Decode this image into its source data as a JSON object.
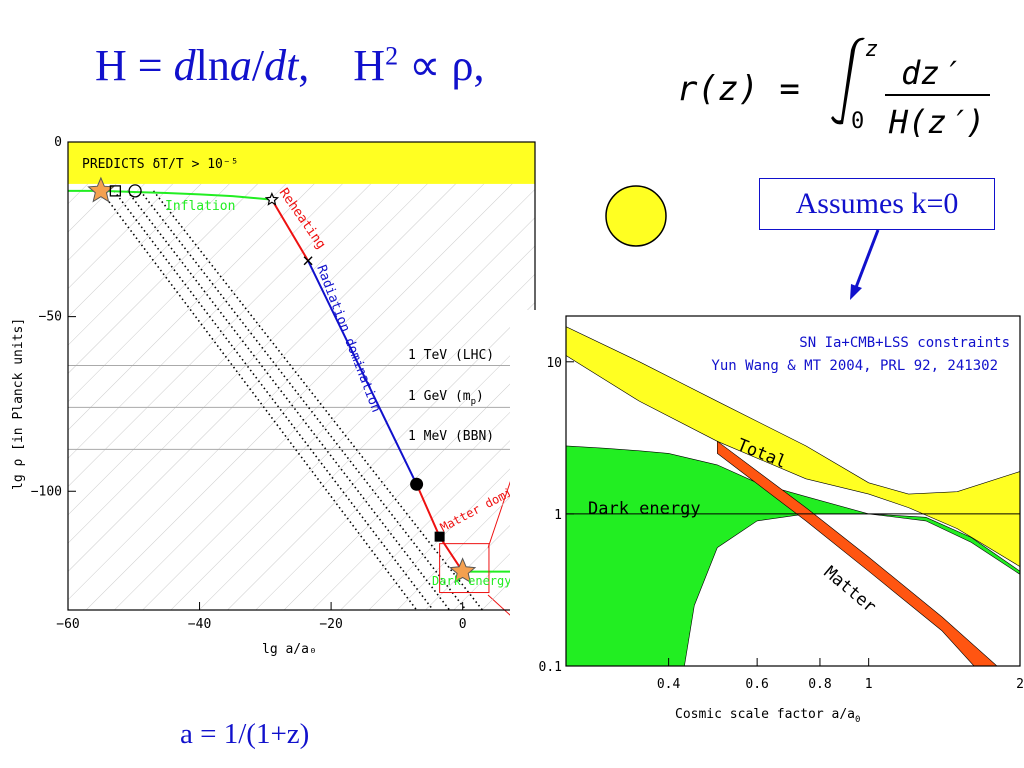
{
  "header": {
    "hubble_lhs": "H = ",
    "hubble_d": "d",
    "hubble_ln": "ln",
    "hubble_a": "a",
    "hubble_slash": "/",
    "hubble_dt": "dt",
    "hubble_comma": ",",
    "friedmann_H": "H",
    "friedmann_sup": "2",
    "friedmann_rest": " ∝ ρ,",
    "distance_lhs": "r(z) = ",
    "distance_int_upper": "z",
    "distance_int_lower": "0",
    "distance_num": "dz′",
    "distance_den": "H(z′)"
  },
  "assumption_box": "Assumes k=0",
  "footer_formula": "a = 1/(1+z)",
  "colors": {
    "blue": "#1111cc",
    "yellow": "#ffff22",
    "green": "#22ee22",
    "red": "#ee1111",
    "matter": "#ff5511",
    "hatch": "#cccccc"
  },
  "chart_data": [
    {
      "type": "line",
      "xlabel": "lg a/a₀",
      "ylabel": "lg ρ [in Planck units]",
      "xlim": [
        -60,
        11
      ],
      "ylim": [
        -134,
        0
      ],
      "xticks": [
        -60,
        -40,
        -20,
        0
      ],
      "yticks": [
        0,
        -50,
        -100
      ],
      "grid": false,
      "excluded_band": {
        "label": "PREDICTS δT/T > 10⁻⁵",
        "y": [
          -12,
          0
        ]
      },
      "energy_scales": [
        {
          "label": "1 TeV (LHC)",
          "y": -64
        },
        {
          "label": "1 GeV (m",
          "subscript": "p",
          "close": ")",
          "y": -76
        },
        {
          "label": "1 MeV (BBN)",
          "y": -88
        }
      ],
      "series": [
        {
          "name": "Inflation",
          "color": "#22ee22",
          "x": [
            -60,
            -55,
            -50,
            -45,
            -40,
            -35,
            -32,
            -29
          ],
          "y": [
            -14,
            -14,
            -14.3,
            -14.6,
            -15,
            -15.5,
            -16,
            -16.5
          ]
        },
        {
          "name": "Reheating",
          "color": "#ee1111",
          "x": [
            -29,
            -23.5
          ],
          "y": [
            -16.5,
            -34
          ]
        },
        {
          "name": "Radiation domination",
          "color": "#1111cc",
          "x": [
            -23.5,
            -7
          ],
          "y": [
            -34,
            -98
          ]
        },
        {
          "name": "Matter domination",
          "color": "#ee1111",
          "x": [
            -7,
            -3.5,
            0
          ],
          "y": [
            -98,
            -113,
            -123
          ]
        },
        {
          "name": "Dark energy domination",
          "color": "#22ee22",
          "x": [
            0,
            11
          ],
          "y": [
            -123,
            -123
          ]
        }
      ],
      "markers": [
        {
          "shape": "star-filled",
          "x": -55,
          "y": -14
        },
        {
          "shape": "square-open",
          "x": -52.8,
          "y": -14
        },
        {
          "shape": "circle-open",
          "x": -49.8,
          "y": -14
        },
        {
          "shape": "star-open",
          "x": -29,
          "y": -16.5
        },
        {
          "shape": "cross",
          "x": -23.5,
          "y": -34
        },
        {
          "shape": "circle-filled",
          "x": -7,
          "y": -98
        },
        {
          "shape": "square-filled",
          "x": -3.5,
          "y": -113
        },
        {
          "shape": "star-filled",
          "x": 0,
          "y": -123
        }
      ],
      "tracks": [
        {
          "from": [
            -55,
            -14
          ],
          "to": [
            -7,
            -134
          ]
        },
        {
          "from": [
            -53,
            -14
          ],
          "to": [
            -4.5,
            -134
          ]
        },
        {
          "from": [
            -51,
            -14
          ],
          "to": [
            -2,
            -134
          ]
        },
        {
          "from": [
            -49,
            -14
          ],
          "to": [
            0.5,
            -134
          ]
        },
        {
          "from": [
            -47,
            -14
          ],
          "to": [
            3,
            -134
          ]
        }
      ]
    },
    {
      "type": "area",
      "xscale": "log",
      "yscale": "log",
      "xlabel": "Cosmic scale factor a/a",
      "xlabel_sub": "0",
      "xlim": [
        0.25,
        2
      ],
      "ylim": [
        0.1,
        20
      ],
      "xticks": [
        0.4,
        0.6,
        0.8,
        1,
        2
      ],
      "yticks": [
        0.1,
        1,
        10
      ],
      "annotations": [
        "SN Ia+CMB+LSS constraints",
        "Yun Wang & MT 2004, PRL 92, 241302"
      ],
      "series": [
        {
          "name": "Total",
          "color": "#ffff22",
          "upper_x": [
            0.25,
            0.35,
            0.5,
            0.75,
            1.0,
            1.2,
            1.5,
            2.0
          ],
          "upper_y": [
            17,
            10,
            5.5,
            2.8,
            1.6,
            1.35,
            1.4,
            1.9
          ],
          "lower_x": [
            0.25,
            0.35,
            0.5,
            0.75,
            1.0,
            1.2,
            1.5,
            2.0
          ],
          "lower_y": [
            11,
            5.5,
            3.0,
            1.7,
            1.35,
            1.1,
            0.8,
            0.45
          ]
        },
        {
          "name": "Dark energy",
          "color": "#22ee22",
          "upper_x": [
            0.25,
            0.3,
            0.35,
            0.4,
            0.5,
            0.6,
            0.75,
            1.0,
            1.3,
            1.6,
            2.0
          ],
          "upper_y": [
            2.8,
            2.7,
            2.6,
            2.5,
            2.1,
            1.6,
            1.3,
            1.0,
            0.95,
            0.7,
            0.42
          ],
          "lower_x": [
            0.25,
            0.3,
            0.35,
            0.4,
            0.43,
            0.45,
            0.5,
            0.6,
            0.75,
            1.0,
            1.3,
            1.6,
            2.0
          ],
          "lower_y": [
            0.1,
            0.1,
            0.1,
            0.1,
            0.1,
            0.25,
            0.6,
            0.9,
            1.0,
            1.0,
            0.9,
            0.65,
            0.4
          ]
        },
        {
          "name": "Matter",
          "color": "#ff5511",
          "upper_x": [
            0.5,
            0.75,
            1.0,
            1.4,
            1.62
          ],
          "upper_y": [
            2.5,
            0.9,
            0.42,
            0.17,
            0.1
          ],
          "lower_x": [
            0.5,
            0.75,
            1.0,
            1.4,
            1.8
          ],
          "lower_y": [
            3.0,
            1.1,
            0.52,
            0.21,
            0.1
          ]
        }
      ]
    }
  ]
}
